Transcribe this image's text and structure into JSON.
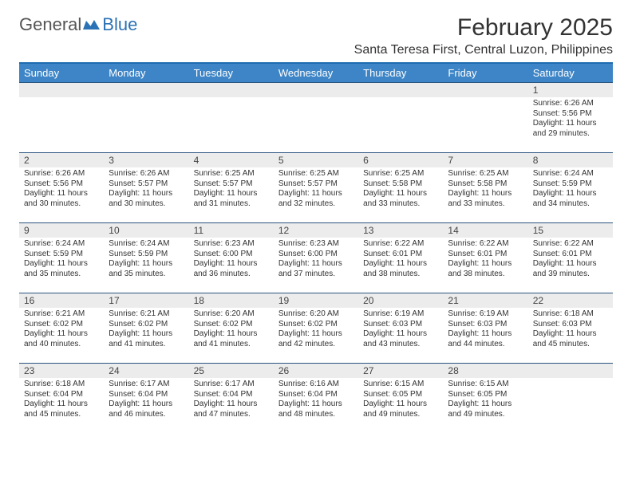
{
  "logo": {
    "text_general": "General",
    "text_blue": "Blue",
    "accent": "#2a72b5"
  },
  "title": "February 2025",
  "location": "Santa Teresa First, Central Luzon, Philippines",
  "colors": {
    "header_bg": "#3d85c6",
    "header_text": "#ffffff",
    "body_text": "#333333",
    "daynum_bg": "#ececec",
    "row_border": "#2a5580",
    "top_border": "#1f6bb0"
  },
  "typography": {
    "title_fontsize": 30,
    "location_fontsize": 16,
    "th_fontsize": 13,
    "cell_fontsize": 10,
    "daynum_fontsize": 12
  },
  "day_headers": [
    "Sunday",
    "Monday",
    "Tuesday",
    "Wednesday",
    "Thursday",
    "Friday",
    "Saturday"
  ],
  "weeks": [
    [
      null,
      null,
      null,
      null,
      null,
      null,
      {
        "n": "1",
        "sr": "6:26 AM",
        "ss": "5:56 PM",
        "dl": "11 hours and 29 minutes."
      }
    ],
    [
      {
        "n": "2",
        "sr": "6:26 AM",
        "ss": "5:56 PM",
        "dl": "11 hours and 30 minutes."
      },
      {
        "n": "3",
        "sr": "6:26 AM",
        "ss": "5:57 PM",
        "dl": "11 hours and 30 minutes."
      },
      {
        "n": "4",
        "sr": "6:25 AM",
        "ss": "5:57 PM",
        "dl": "11 hours and 31 minutes."
      },
      {
        "n": "5",
        "sr": "6:25 AM",
        "ss": "5:57 PM",
        "dl": "11 hours and 32 minutes."
      },
      {
        "n": "6",
        "sr": "6:25 AM",
        "ss": "5:58 PM",
        "dl": "11 hours and 33 minutes."
      },
      {
        "n": "7",
        "sr": "6:25 AM",
        "ss": "5:58 PM",
        "dl": "11 hours and 33 minutes."
      },
      {
        "n": "8",
        "sr": "6:24 AM",
        "ss": "5:59 PM",
        "dl": "11 hours and 34 minutes."
      }
    ],
    [
      {
        "n": "9",
        "sr": "6:24 AM",
        "ss": "5:59 PM",
        "dl": "11 hours and 35 minutes."
      },
      {
        "n": "10",
        "sr": "6:24 AM",
        "ss": "5:59 PM",
        "dl": "11 hours and 35 minutes."
      },
      {
        "n": "11",
        "sr": "6:23 AM",
        "ss": "6:00 PM",
        "dl": "11 hours and 36 minutes."
      },
      {
        "n": "12",
        "sr": "6:23 AM",
        "ss": "6:00 PM",
        "dl": "11 hours and 37 minutes."
      },
      {
        "n": "13",
        "sr": "6:22 AM",
        "ss": "6:01 PM",
        "dl": "11 hours and 38 minutes."
      },
      {
        "n": "14",
        "sr": "6:22 AM",
        "ss": "6:01 PM",
        "dl": "11 hours and 38 minutes."
      },
      {
        "n": "15",
        "sr": "6:22 AM",
        "ss": "6:01 PM",
        "dl": "11 hours and 39 minutes."
      }
    ],
    [
      {
        "n": "16",
        "sr": "6:21 AM",
        "ss": "6:02 PM",
        "dl": "11 hours and 40 minutes."
      },
      {
        "n": "17",
        "sr": "6:21 AM",
        "ss": "6:02 PM",
        "dl": "11 hours and 41 minutes."
      },
      {
        "n": "18",
        "sr": "6:20 AM",
        "ss": "6:02 PM",
        "dl": "11 hours and 41 minutes."
      },
      {
        "n": "19",
        "sr": "6:20 AM",
        "ss": "6:02 PM",
        "dl": "11 hours and 42 minutes."
      },
      {
        "n": "20",
        "sr": "6:19 AM",
        "ss": "6:03 PM",
        "dl": "11 hours and 43 minutes."
      },
      {
        "n": "21",
        "sr": "6:19 AM",
        "ss": "6:03 PM",
        "dl": "11 hours and 44 minutes."
      },
      {
        "n": "22",
        "sr": "6:18 AM",
        "ss": "6:03 PM",
        "dl": "11 hours and 45 minutes."
      }
    ],
    [
      {
        "n": "23",
        "sr": "6:18 AM",
        "ss": "6:04 PM",
        "dl": "11 hours and 45 minutes."
      },
      {
        "n": "24",
        "sr": "6:17 AM",
        "ss": "6:04 PM",
        "dl": "11 hours and 46 minutes."
      },
      {
        "n": "25",
        "sr": "6:17 AM",
        "ss": "6:04 PM",
        "dl": "11 hours and 47 minutes."
      },
      {
        "n": "26",
        "sr": "6:16 AM",
        "ss": "6:04 PM",
        "dl": "11 hours and 48 minutes."
      },
      {
        "n": "27",
        "sr": "6:15 AM",
        "ss": "6:05 PM",
        "dl": "11 hours and 49 minutes."
      },
      {
        "n": "28",
        "sr": "6:15 AM",
        "ss": "6:05 PM",
        "dl": "11 hours and 49 minutes."
      },
      null
    ]
  ],
  "labels": {
    "sunrise": "Sunrise:",
    "sunset": "Sunset:",
    "daylight": "Daylight:"
  }
}
